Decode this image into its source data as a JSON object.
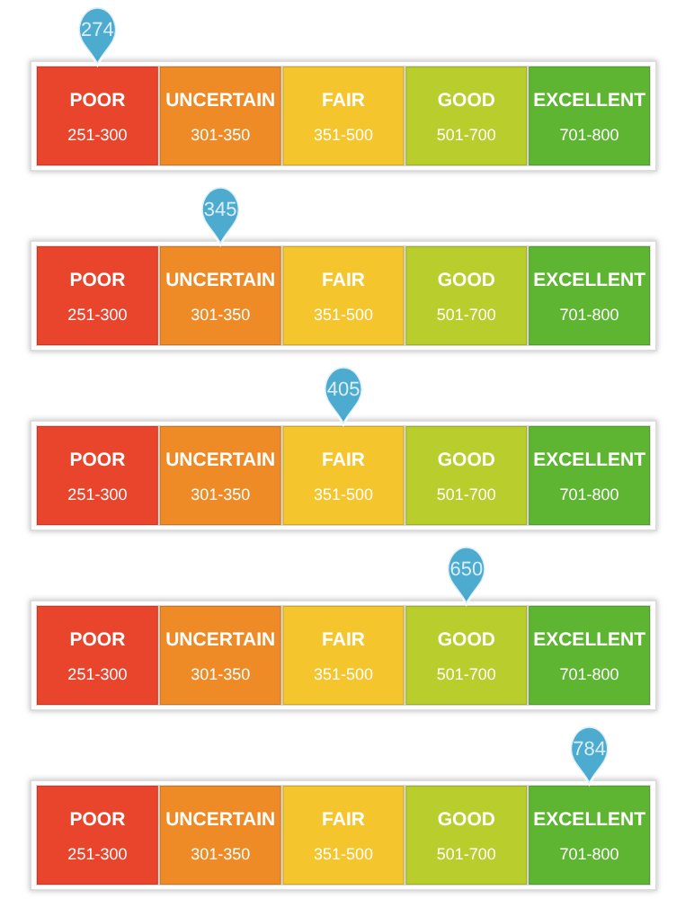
{
  "chart_data": [
    {
      "type": "other",
      "categories": [
        "POOR",
        "UNCERTAIN",
        "FAIR",
        "GOOD",
        "EXCELLENT"
      ],
      "color": "#2196c4",
      "annotations": [
        "251-300",
        "301-350",
        "351-500",
        "501-700",
        "701-800"
      ],
      "values": [
        274,
        null,
        null,
        null,
        null
      ],
      "data_labels": true
    },
    {
      "type": "other",
      "categories": [
        "POOR",
        "UNCERTAIN",
        "FAIR",
        "GOOD",
        "EXCELLENT"
      ],
      "color": "#2196c4",
      "annotations": [
        "251-300",
        "301-350",
        "351-500",
        "501-700",
        "701-800"
      ],
      "values": [
        null,
        345,
        null,
        null,
        null
      ],
      "data_labels": true
    },
    {
      "type": "other",
      "categories": [
        "POOR",
        "UNCERTAIN",
        "FAIR",
        "GOOD",
        "EXCELLENT"
      ],
      "color": "#2196c4",
      "annotations": [
        "251-300",
        "301-350",
        "351-500",
        "501-700",
        "701-800"
      ],
      "values": [
        null,
        null,
        405,
        null,
        null
      ],
      "data_labels": true
    },
    {
      "type": "other",
      "categories": [
        "POOR",
        "UNCERTAIN",
        "FAIR",
        "GOOD",
        "EXCELLENT"
      ],
      "color": "#2196c4",
      "annotations": [
        "251-300",
        "301-350",
        "351-500",
        "501-700",
        "701-800"
      ],
      "values": [
        null,
        null,
        null,
        650,
        null
      ],
      "data_labels": true
    },
    {
      "type": "other",
      "categories": [
        "POOR",
        "UNCERTAIN",
        "FAIR",
        "GOOD",
        "EXCELLENT"
      ],
      "color": "#2196c4",
      "annotations": [
        "251-300",
        "301-350",
        "351-500",
        "501-700",
        "701-800"
      ],
      "values": [
        null,
        null,
        null,
        null,
        784
      ],
      "data_labels": true
    }
  ]
}
